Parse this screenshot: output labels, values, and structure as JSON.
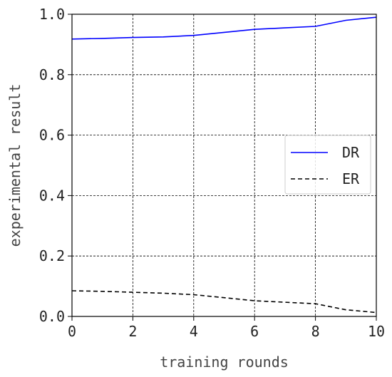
{
  "chart_data": {
    "type": "line",
    "title": "",
    "xlabel": "training rounds",
    "ylabel": "experimental result",
    "xlim": [
      0,
      10
    ],
    "ylim": [
      0,
      1
    ],
    "xticks": [
      0,
      2,
      4,
      6,
      8,
      10
    ],
    "yticks": [
      0,
      0.2,
      0.4,
      0.6,
      0.8,
      1
    ],
    "xtick_labels": [
      "0",
      "2",
      "4",
      "6",
      "8",
      "10"
    ],
    "ytick_labels": [
      "0.0",
      "0.2",
      "0.4",
      "0.6",
      "0.8",
      "1.0"
    ],
    "grid": true,
    "legend_position": "center-right",
    "series": [
      {
        "name": "DR",
        "color": "#0000ff",
        "style": "solid",
        "x": [
          0,
          1,
          2,
          3,
          4,
          5,
          6,
          7,
          8,
          9,
          10
        ],
        "y": [
          0.918,
          0.92,
          0.923,
          0.925,
          0.93,
          0.94,
          0.95,
          0.955,
          0.96,
          0.98,
          0.99
        ]
      },
      {
        "name": "ER",
        "color": "#000000",
        "style": "dashed",
        "x": [
          0,
          1,
          2,
          3,
          4,
          5,
          6,
          7,
          8,
          9,
          10
        ],
        "y": [
          0.085,
          0.083,
          0.08,
          0.077,
          0.072,
          0.062,
          0.052,
          0.047,
          0.042,
          0.022,
          0.013
        ]
      }
    ]
  }
}
